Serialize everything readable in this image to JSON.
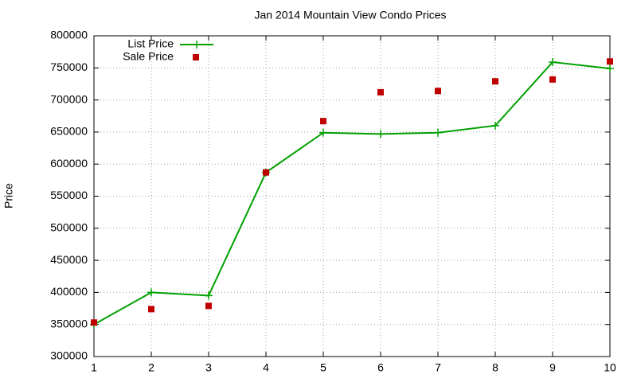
{
  "chart_data": {
    "type": "line",
    "title": "Jan 2014 Mountain View Condo Prices",
    "y_label": "Price",
    "x": [
      1,
      2,
      3,
      4,
      5,
      6,
      7,
      8,
      9,
      10
    ],
    "series": [
      {
        "name": "List Price",
        "color": "#00a000",
        "style": "linespoints",
        "values": [
          350000,
          400000,
          395000,
          587000,
          649000,
          647000,
          649000,
          660000,
          759000,
          749000
        ]
      },
      {
        "name": "Sale Price",
        "color": "#c00000",
        "style": "points",
        "values": [
          353000,
          374000,
          379000,
          587000,
          667000,
          712000,
          714000,
          729000,
          732000,
          760000
        ]
      }
    ],
    "xlim": [
      1,
      10
    ],
    "xticks": [
      1,
      2,
      3,
      4,
      5,
      6,
      7,
      8,
      9,
      10
    ],
    "ylim": [
      300000,
      800000
    ],
    "yticks": [
      300000,
      350000,
      400000,
      450000,
      500000,
      550000,
      600000,
      650000,
      700000,
      750000,
      800000
    ],
    "grid": true,
    "legend": "top-left"
  }
}
